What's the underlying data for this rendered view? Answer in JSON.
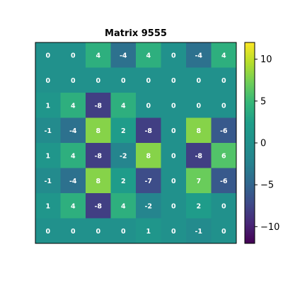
{
  "chart_data": {
    "type": "heatmap",
    "title": "Matrix 9555",
    "matrix": [
      [
        0,
        0,
        4,
        -4,
        4,
        0,
        -4,
        4
      ],
      [
        0,
        0,
        0,
        0,
        0,
        0,
        0,
        0
      ],
      [
        1,
        4,
        -8,
        4,
        0,
        0,
        0,
        0
      ],
      [
        -1,
        -4,
        8,
        2,
        -8,
        0,
        8,
        -6
      ],
      [
        1,
        4,
        -8,
        -2,
        8,
        0,
        -8,
        6
      ],
      [
        -1,
        -4,
        8,
        2,
        -7,
        0,
        7,
        -6
      ],
      [
        1,
        4,
        -8,
        4,
        -2,
        0,
        2,
        0
      ],
      [
        0,
        0,
        0,
        0,
        1,
        0,
        -1,
        0
      ]
    ],
    "colormap": "viridis",
    "vmin": -12,
    "vmax": 12,
    "colorbar_ticks": [
      10,
      5,
      0,
      -5,
      -10
    ],
    "colorbar_tick_labels": [
      "10",
      "5",
      "0",
      "−5",
      "−10"
    ],
    "cell_label_color": "#ffffff",
    "grid": false
  }
}
